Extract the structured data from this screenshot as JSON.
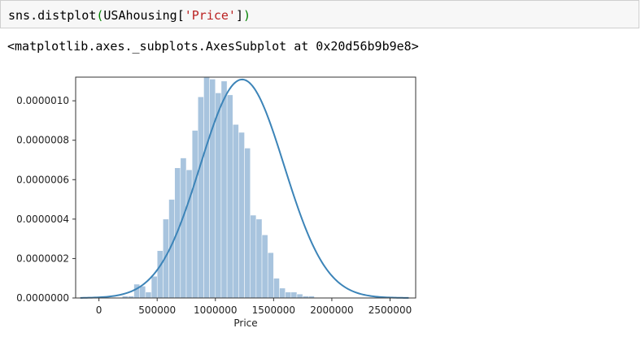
{
  "cell": {
    "code_prefix": "sns.distplot",
    "paren_open": "(",
    "code_middle": "USAhousing[",
    "string_literal": "'Price'",
    "code_bracket_close": "]",
    "paren_close": ")",
    "output": "<matplotlib.axes._subplots.AxesSubplot at 0x20d56b9b9e8>"
  },
  "colors": {
    "hist_fill": "#a8c4de",
    "kde_line": "#3c84b8",
    "cell_bg": "#f7f7f7",
    "string": "#ba2121",
    "paren": "#008000"
  },
  "chart_data": {
    "type": "histogram",
    "title": "",
    "xlabel": "Price",
    "ylabel": "",
    "xlim": [
      -200000,
      2720000
    ],
    "ylim": [
      0,
      1.12e-06
    ],
    "x_ticks": [
      0,
      500000,
      1000000,
      1500000,
      2000000,
      2500000
    ],
    "x_tick_labels": [
      "0",
      "500000",
      "1000000",
      "1500000",
      "2000000",
      "2500000"
    ],
    "y_ticks": [
      0,
      2e-07,
      4e-07,
      6e-07,
      8e-07,
      1e-06
    ],
    "y_tick_labels": [
      "0.0000000",
      "0.0000002",
      "0.0000004",
      "0.0000006",
      "0.0000008",
      "0.0000010"
    ],
    "bin_width": 50000,
    "bins_start": [
      150000,
      200000,
      250000,
      300000,
      350000,
      400000,
      450000,
      500000,
      550000,
      600000,
      650000,
      700000,
      750000,
      800000,
      850000,
      900000,
      950000,
      1000000,
      1050000,
      1100000,
      1150000,
      1200000,
      1250000,
      1300000,
      1350000,
      1400000,
      1450000,
      1500000,
      1550000,
      1600000,
      1650000,
      1700000,
      1750000,
      1800000,
      1850000,
      1900000,
      1950000,
      2000000,
      2050000,
      2100000,
      2150000
    ],
    "density": [
      0.0,
      1e-08,
      1e-08,
      7e-08,
      6e-08,
      3e-08,
      1.1e-07,
      2.4e-07,
      4e-07,
      5e-07,
      6.6e-07,
      7.1e-07,
      6.5e-07,
      8.5e-07,
      1.02e-06,
      1.12e-06,
      1.11e-06,
      1.04e-06,
      1.1e-06,
      1.03e-06,
      8.8e-07,
      8.4e-07,
      7.6e-07,
      4.2e-07,
      4e-07,
      3.2e-07,
      2.3e-07,
      1e-07,
      5e-08,
      3e-08,
      3e-08,
      2e-08,
      1e-08,
      1e-08,
      0.0,
      0.0,
      0.0,
      0.0,
      0.0,
      0.0,
      0.0
    ],
    "kde_mean": 1230000,
    "kde_sd": 360000,
    "kde_range": [
      -160000,
      2660000
    ]
  }
}
